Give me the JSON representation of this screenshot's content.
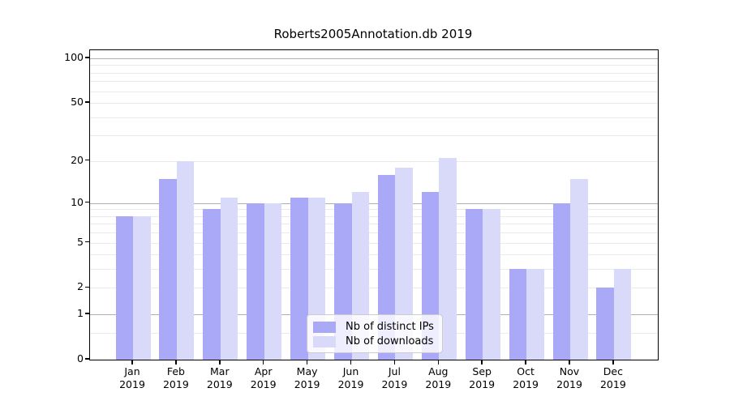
{
  "title": "Roberts2005Annotation.db 2019",
  "chart_data": {
    "type": "bar",
    "title": "Roberts2005Annotation.db 2019",
    "scale": "log1p",
    "categories": [
      "Jan",
      "Feb",
      "Mar",
      "Apr",
      "May",
      "Jun",
      "Jul",
      "Aug",
      "Sep",
      "Oct",
      "Nov",
      "Dec"
    ],
    "year_label": "2019",
    "series": [
      {
        "name": "Nb of distinct IPs",
        "color": "#a9a9f8",
        "values": [
          8,
          15,
          9,
          10,
          11,
          10,
          16,
          12,
          9,
          3,
          10,
          2
        ]
      },
      {
        "name": "Nb of downloads",
        "color": "#d9d9fa",
        "values": [
          8,
          20,
          11,
          10,
          11,
          12,
          18,
          21,
          9,
          3,
          15,
          3
        ]
      }
    ],
    "ytick_values": [
      0,
      1,
      2,
      5,
      10,
      20,
      50,
      100
    ],
    "ytick_labels": [
      "0",
      "1",
      "2",
      "5",
      "10",
      "20",
      "50",
      "100"
    ],
    "major_gridlines": [
      1,
      10,
      100
    ],
    "minor_gridlines": [
      0.5,
      2,
      3,
      4,
      5,
      6,
      7,
      8,
      9,
      20,
      30,
      40,
      50,
      60,
      70,
      80,
      90
    ],
    "ylim": [
      0,
      113
    ],
    "grid": true,
    "legend_position": "bottom-center",
    "background_color": "#ffffff",
    "major_grid_color": "#b0b0b0",
    "minor_grid_color": "#eaeaea"
  }
}
